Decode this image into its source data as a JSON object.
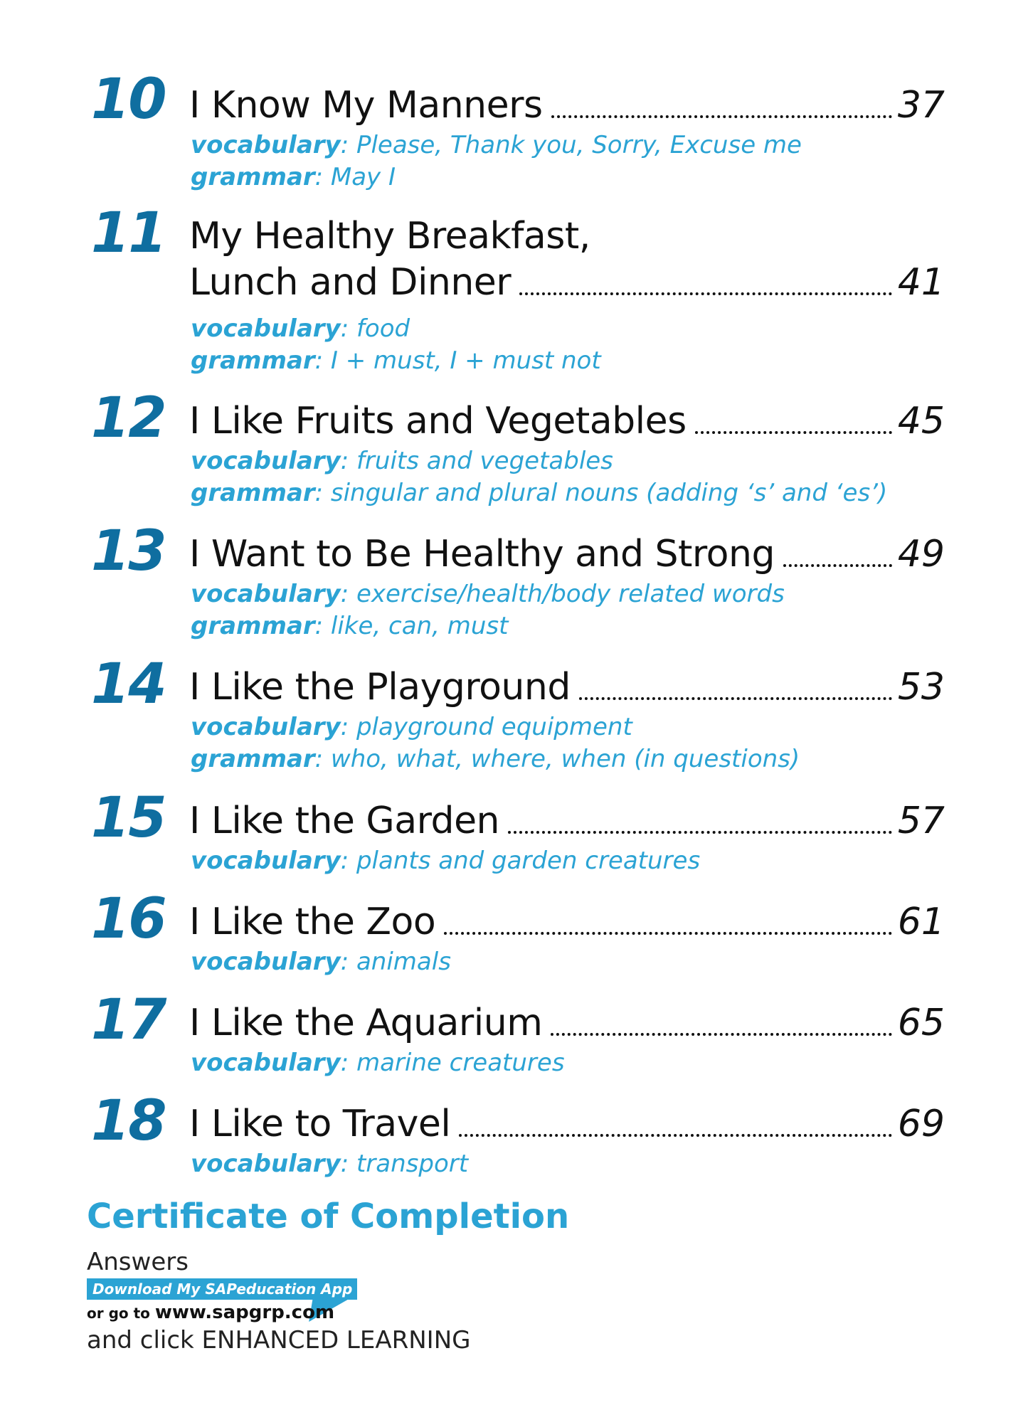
{
  "entries": [
    {
      "number": "10",
      "title": "I Know My Manners",
      "page": "37",
      "vocab_label": "vocabulary",
      "vocab": ": Please, Thank you, Sorry, Excuse me",
      "grammar_label": "grammar",
      "grammar": ": May I"
    },
    {
      "number": "11",
      "title_line1": "My Healthy Breakfast,",
      "title": "Lunch and Dinner",
      "page": "41",
      "vocab_label": "vocabulary",
      "vocab": ": food",
      "grammar_label": "grammar",
      "grammar": ": I + must, I + must not"
    },
    {
      "number": "12",
      "title": "I Like Fruits and Vegetables",
      "page": "45",
      "vocab_label": "vocabulary",
      "vocab": ": fruits and vegetables",
      "grammar_label": "grammar",
      "grammar": ": singular and plural nouns (adding ‘s’ and ‘es’)"
    },
    {
      "number": "13",
      "title": "I Want to Be Healthy and Strong",
      "page": "49",
      "vocab_label": "vocabulary",
      "vocab": ": exercise/health/body related words",
      "grammar_label": "grammar",
      "grammar": ": like, can, must"
    },
    {
      "number": "14",
      "title": "I Like the Playground",
      "page": "53",
      "vocab_label": "vocabulary",
      "vocab": ": playground equipment",
      "grammar_label": "grammar",
      "grammar": ": who, what, where, when (in questions)"
    },
    {
      "number": "15",
      "title": "I Like the Garden",
      "page": "57",
      "vocab_label": "vocabulary",
      "vocab": ": plants and garden creatures"
    },
    {
      "number": "16",
      "title": "I Like the Zoo",
      "page": "61",
      "vocab_label": "vocabulary",
      "vocab": ": animals"
    },
    {
      "number": "17",
      "title": "I Like the Aquarium",
      "page": "65",
      "vocab_label": "vocabulary",
      "vocab": ": marine creatures"
    },
    {
      "number": "18",
      "title": "I Like to Travel",
      "page": "69",
      "vocab_label": "vocabulary",
      "vocab": ": transport"
    }
  ],
  "certificate": "Certificate of Completion",
  "answers": "Answers",
  "banner": "Download My SAPeducation App Now!",
  "goto_prefix": "or go to ",
  "goto_url": "www.sapgrp.com",
  "click_text": "and click ENHANCED LEARNING"
}
